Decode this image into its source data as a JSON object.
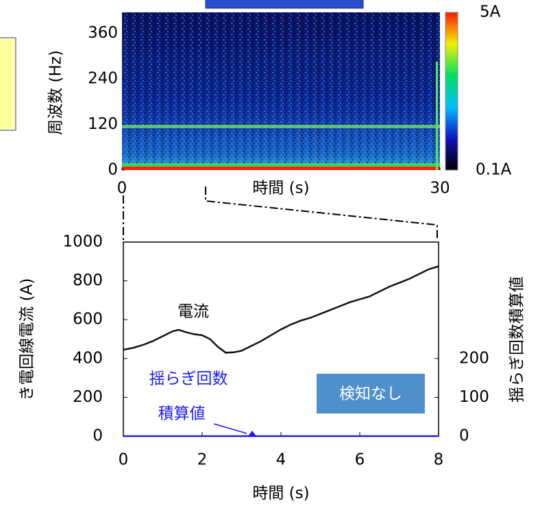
{
  "chart_data": [
    {
      "type": "spectrogram",
      "y_label": "周波数 (Hz)",
      "x_label": "時間 (s)",
      "xlim": [
        0,
        30
      ],
      "xticks": [
        0,
        30
      ],
      "ylim": [
        0,
        415
      ],
      "yticks": [
        0,
        120,
        240,
        360
      ],
      "colorbar_labels": [
        "5A",
        "0.1A"
      ]
    },
    {
      "type": "line",
      "y_label": "き電回線電流 (A)",
      "y2_label": "揺らぎ回数積算値",
      "x_label": "時間 (s)",
      "annotations": [
        "電流",
        "揺らぎ回数",
        "積算値",
        "検知なし"
      ],
      "xlim": [
        0,
        8
      ],
      "xticks": [
        0,
        2,
        4,
        6,
        8
      ],
      "ylim": [
        0,
        1000
      ],
      "yticks": [
        0,
        200,
        400,
        600,
        800,
        1000
      ],
      "y2lim": [
        0,
        500
      ],
      "y2ticks": [
        0,
        100,
        200
      ],
      "series": [
        {
          "name": "電流",
          "color": "#111111",
          "x": [
            0,
            0.25,
            0.5,
            0.75,
            1.0,
            1.25,
            1.4,
            1.6,
            1.8,
            2.0,
            2.2,
            2.4,
            2.6,
            2.8,
            3.0,
            3.25,
            3.5,
            3.75,
            4.0,
            4.25,
            4.5,
            4.75,
            5.0,
            5.25,
            5.5,
            5.75,
            6.0,
            6.25,
            6.5,
            6.75,
            7.0,
            7.25,
            7.5,
            7.75,
            8.0
          ],
          "values": [
            445,
            455,
            470,
            490,
            515,
            540,
            548,
            535,
            525,
            520,
            500,
            460,
            430,
            432,
            440,
            465,
            490,
            520,
            550,
            575,
            595,
            610,
            630,
            650,
            670,
            690,
            705,
            720,
            745,
            770,
            790,
            810,
            835,
            860,
            875
          ]
        },
        {
          "name": "揺らぎ回数積算値",
          "color": "#1a1aff",
          "axis": "y2",
          "x": [
            0,
            8
          ],
          "values": [
            0,
            0
          ]
        }
      ]
    }
  ]
}
